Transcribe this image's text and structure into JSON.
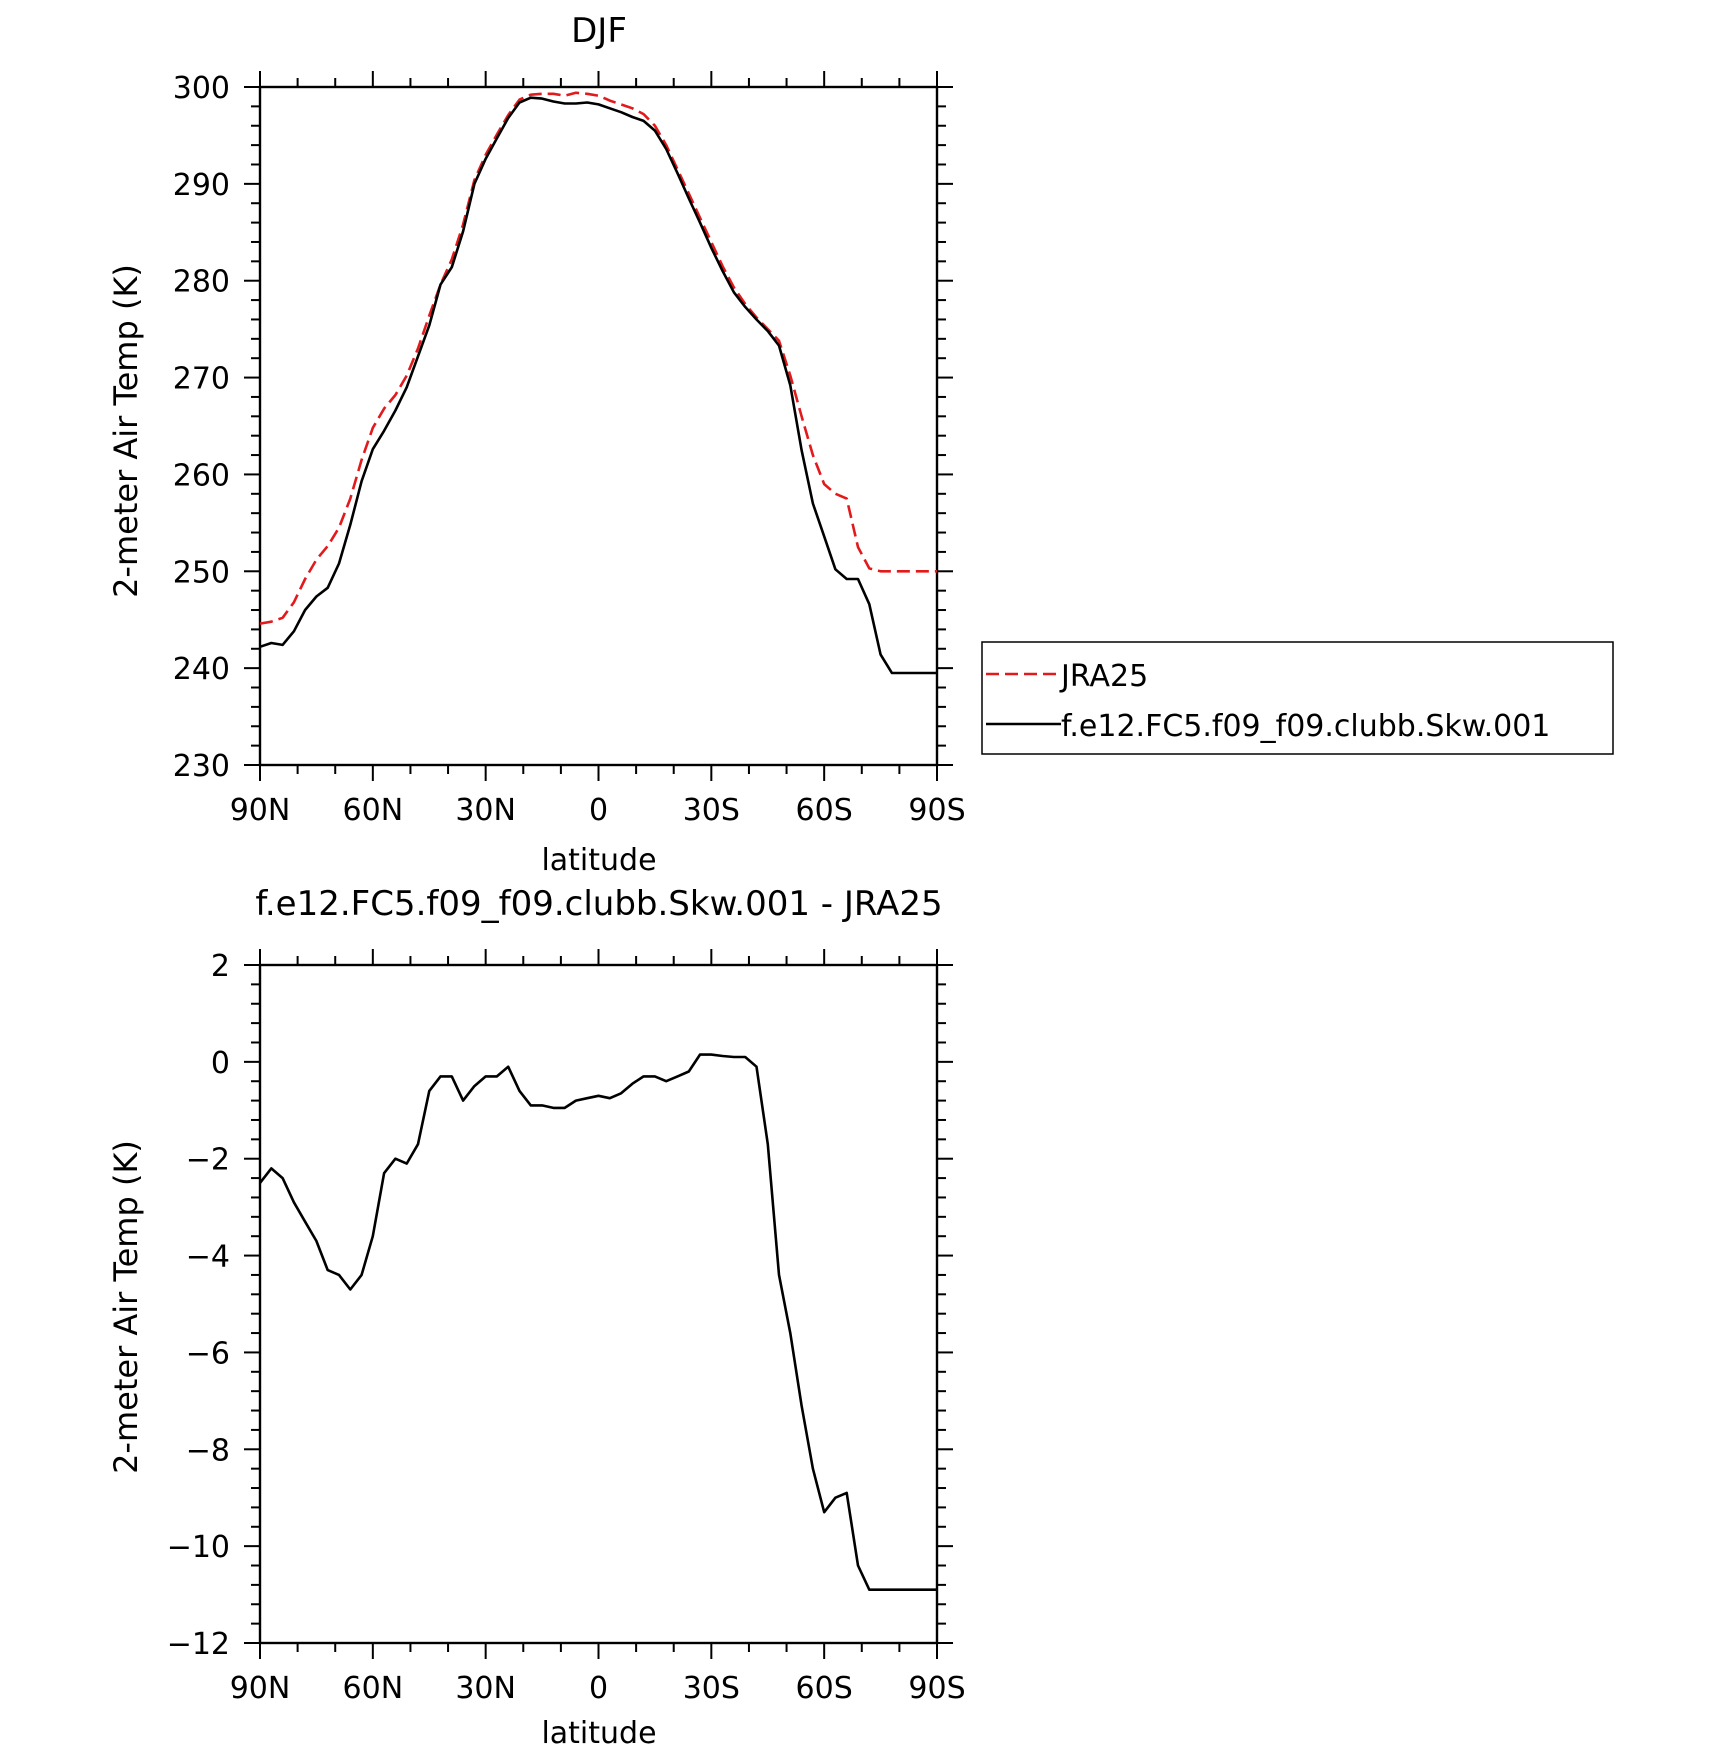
{
  "chart_data": [
    {
      "type": "line",
      "title": "DJF",
      "xlabel": "latitude",
      "ylabel": "2-meter Air Temp (K)",
      "xlim": [
        90,
        -90
      ],
      "ylim": [
        230,
        300
      ],
      "x_ticks": [
        90,
        60,
        30,
        0,
        -30,
        -60,
        -90
      ],
      "x_tick_labels": [
        "90N",
        "60N",
        "30N",
        "0",
        "30S",
        "60S",
        "90S"
      ],
      "y_ticks": [
        230,
        240,
        250,
        260,
        270,
        280,
        290,
        300
      ],
      "y_tick_labels": [
        "230",
        "240",
        "250",
        "260",
        "270",
        "280",
        "290",
        "300"
      ],
      "legend_position": "right",
      "series": [
        {
          "name": "JRA25",
          "color": "#e31a1c",
          "style": "dashed",
          "x": [
            90,
            87,
            84,
            81,
            78,
            75,
            72,
            69,
            66,
            63,
            60,
            57,
            54,
            51,
            48,
            45,
            42,
            39,
            36,
            33,
            30,
            27,
            24,
            21,
            18,
            15,
            12,
            9,
            6,
            3,
            0,
            -3,
            -6,
            -9,
            -12,
            -15,
            -18,
            -21,
            -24,
            -27,
            -30,
            -33,
            -36,
            -39,
            -42,
            -45,
            -48,
            -51,
            -54,
            -57,
            -60,
            -63,
            -66,
            -69,
            -72,
            -75,
            -78,
            -81,
            -84,
            -87,
            -90
          ],
          "y": [
            244.6,
            244.8,
            245.2,
            246.8,
            249.2,
            251.2,
            252.6,
            254.5,
            257.5,
            261.5,
            264.8,
            266.8,
            268.2,
            270.2,
            273.0,
            276.4,
            279.6,
            282.2,
            285.8,
            290.4,
            293.0,
            295.1,
            297.1,
            298.7,
            299.2,
            299.3,
            299.3,
            299.1,
            299.4,
            299.3,
            299.1,
            298.6,
            298.2,
            297.8,
            297.2,
            296.0,
            294.0,
            291.5,
            289.0,
            286.5,
            284.0,
            281.5,
            279.3,
            277.6,
            276.2,
            275.0,
            273.8,
            270.2,
            266.0,
            262.0,
            259.0,
            258.0,
            257.5,
            252.5,
            250.3,
            250.0,
            250.0,
            250.0,
            250.0,
            250.0,
            250.0
          ]
        },
        {
          "name": "f.e12.FC5.f09_f09.clubb.Skw.001",
          "color": "#000000",
          "style": "solid",
          "x": [
            90,
            87,
            84,
            81,
            78,
            75,
            72,
            69,
            66,
            63,
            60,
            57,
            54,
            51,
            48,
            45,
            42,
            39,
            36,
            33,
            30,
            27,
            24,
            21,
            18,
            15,
            12,
            9,
            6,
            3,
            0,
            -3,
            -6,
            -9,
            -12,
            -15,
            -18,
            -21,
            -24,
            -27,
            -30,
            -33,
            -36,
            -39,
            -42,
            -45,
            -48,
            -51,
            -54,
            -57,
            -60,
            -63,
            -66,
            -69,
            -72,
            -75,
            -78,
            -81,
            -84,
            -87,
            -90
          ],
          "y": [
            242.2,
            242.6,
            242.4,
            243.8,
            246.0,
            247.4,
            248.3,
            250.8,
            254.8,
            259.3,
            262.6,
            264.5,
            266.6,
            269.0,
            272.2,
            275.4,
            279.6,
            281.4,
            285.1,
            290.0,
            292.6,
            294.7,
            296.8,
            298.4,
            298.9,
            298.8,
            298.5,
            298.3,
            298.3,
            298.4,
            298.2,
            297.8,
            297.4,
            296.9,
            296.5,
            295.5,
            293.6,
            291.1,
            288.5,
            286.0,
            283.4,
            281.0,
            278.8,
            277.3,
            276.0,
            274.8,
            273.3,
            269.2,
            262.5,
            257.0,
            253.6,
            250.2,
            249.2,
            249.2,
            246.6,
            241.4,
            239.5,
            239.5,
            239.5,
            239.5,
            239.5
          ]
        }
      ]
    },
    {
      "type": "line",
      "title": "f.e12.FC5.f09_f09.clubb.Skw.001 - JRA25",
      "xlabel": "latitude",
      "ylabel": "2-meter Air Temp (K)",
      "xlim": [
        90,
        -90
      ],
      "ylim": [
        -12,
        2
      ],
      "x_ticks": [
        90,
        60,
        30,
        0,
        -30,
        -60,
        -90
      ],
      "x_tick_labels": [
        "90N",
        "60N",
        "30N",
        "0",
        "30S",
        "60S",
        "90S"
      ],
      "y_ticks": [
        2,
        0,
        -2,
        -4,
        -6,
        -8,
        -10,
        -12
      ],
      "y_tick_labels": [
        "2",
        "0",
        "−2",
        "−4",
        "−6",
        "−8",
        "−10",
        "−12"
      ],
      "series": [
        {
          "color": "#000000",
          "style": "solid",
          "x": [
            90,
            87,
            84,
            81,
            78,
            75,
            72,
            69,
            66,
            63,
            60,
            57,
            54,
            51,
            48,
            45,
            42,
            39,
            36,
            33,
            30,
            27,
            24,
            21,
            18,
            15,
            12,
            9,
            6,
            3,
            0,
            -3,
            -6,
            -9,
            -12,
            -15,
            -18,
            -21,
            -24,
            -27,
            -30,
            -33,
            -36,
            -39,
            -42,
            -45,
            -48,
            -51,
            -54,
            -57,
            -60,
            -63,
            -66,
            -69,
            -72,
            -75,
            -78,
            -81,
            -84,
            -87,
            -90
          ],
          "y": [
            -2.5,
            -2.2,
            -2.4,
            -2.9,
            -3.3,
            -3.7,
            -4.3,
            -4.4,
            -4.7,
            -4.4,
            -3.6,
            -2.3,
            -2.0,
            -2.1,
            -1.7,
            -0.6,
            -0.3,
            -0.3,
            -0.8,
            -0.5,
            -0.3,
            -0.3,
            -0.1,
            -0.6,
            -0.9,
            -0.9,
            -0.95,
            -0.95,
            -0.8,
            -0.75,
            -0.7,
            -0.75,
            -0.65,
            -0.45,
            -0.3,
            -0.3,
            -0.4,
            -0.3,
            -0.2,
            0.15,
            0.15,
            0.12,
            0.1,
            0.1,
            -0.1,
            -1.7,
            -4.4,
            -5.6,
            -7.1,
            -8.4,
            -9.3,
            -9.0,
            -8.9,
            -10.4,
            -10.9,
            -10.9,
            -10.9,
            -10.9,
            -10.9,
            -10.9,
            -10.9
          ]
        }
      ]
    }
  ]
}
